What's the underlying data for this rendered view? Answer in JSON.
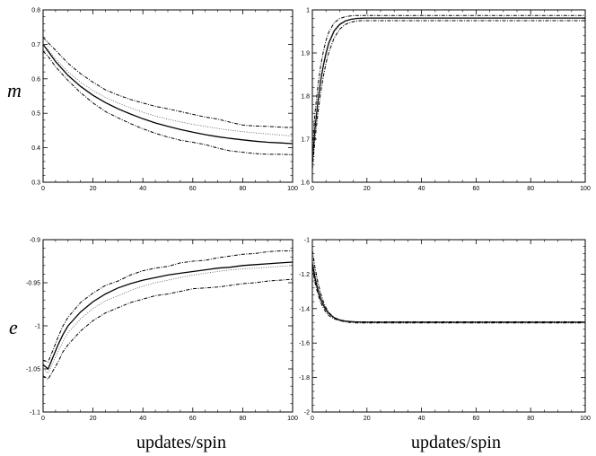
{
  "row_labels": [
    "m",
    "e"
  ],
  "column_labels": [
    "updates/spin",
    "updates/spin"
  ],
  "chart_data": [
    {
      "type": "line",
      "row_label": "m",
      "xlim": [
        0,
        100
      ],
      "ylim": [
        0.3,
        0.8
      ],
      "xticks": [
        0,
        20,
        40,
        60,
        80,
        100
      ],
      "yticks": [
        "0.3",
        "0.4",
        "0.5",
        "0.6",
        "0.7",
        "0.8"
      ],
      "grid": false,
      "series": [
        {
          "style": "solid",
          "x": [
            0,
            2,
            5,
            10,
            15,
            20,
            25,
            30,
            35,
            40,
            45,
            50,
            55,
            60,
            65,
            70,
            75,
            80,
            85,
            90,
            95,
            100
          ],
          "y": [
            0.7,
            0.68,
            0.65,
            0.61,
            0.578,
            0.552,
            0.531,
            0.513,
            0.498,
            0.484,
            0.472,
            0.462,
            0.453,
            0.445,
            0.438,
            0.432,
            0.427,
            0.423,
            0.419,
            0.416,
            0.414,
            0.412
          ]
        },
        {
          "style": "dotted",
          "x": [
            0,
            2,
            5,
            10,
            15,
            20,
            25,
            30,
            35,
            40,
            45,
            50,
            55,
            60,
            65,
            70,
            75,
            80,
            85,
            90,
            95,
            100
          ],
          "y": [
            0.7,
            0.685,
            0.658,
            0.62,
            0.59,
            0.566,
            0.546,
            0.53,
            0.516,
            0.503,
            0.492,
            0.483,
            0.475,
            0.468,
            0.462,
            0.456,
            0.451,
            0.447,
            0.443,
            0.44,
            0.437,
            0.434
          ]
        },
        {
          "style": "dashdot",
          "x": [
            0,
            2,
            5,
            10,
            15,
            20,
            25,
            30,
            35,
            40,
            45,
            50,
            55,
            60,
            65,
            70,
            75,
            80,
            85,
            90,
            95,
            100
          ],
          "y": [
            0.72,
            0.705,
            0.683,
            0.645,
            0.615,
            0.59,
            0.568,
            0.553,
            0.54,
            0.53,
            0.52,
            0.513,
            0.505,
            0.497,
            0.489,
            0.483,
            0.474,
            0.466,
            0.463,
            0.462,
            0.46,
            0.458
          ]
        },
        {
          "style": "dashdot",
          "x": [
            0,
            2,
            5,
            10,
            15,
            20,
            25,
            30,
            35,
            40,
            45,
            50,
            55,
            60,
            65,
            70,
            75,
            80,
            85,
            90,
            95,
            100
          ],
          "y": [
            0.68,
            0.665,
            0.635,
            0.595,
            0.56,
            0.53,
            0.505,
            0.487,
            0.47,
            0.455,
            0.442,
            0.431,
            0.422,
            0.416,
            0.409,
            0.399,
            0.391,
            0.387,
            0.383,
            0.381,
            0.381,
            0.38
          ]
        }
      ]
    },
    {
      "type": "line",
      "row_label": "",
      "xlim": [
        0,
        100
      ],
      "ylim": [
        1.6,
        2.0
      ],
      "xticks": [
        0,
        20,
        40,
        60,
        80,
        100
      ],
      "yticks": [
        "1.6",
        "1.7",
        "1.8",
        "1.9",
        "1"
      ],
      "grid": false,
      "series": [
        {
          "style": "solid",
          "x": [
            0,
            1,
            2,
            3,
            4,
            5,
            6,
            8,
            10,
            12,
            14,
            16,
            18,
            20,
            25,
            30,
            40,
            50,
            60,
            70,
            80,
            90,
            100
          ],
          "y": [
            1.65,
            1.726,
            1.786,
            1.833,
            1.87,
            1.899,
            1.922,
            1.951,
            1.966,
            1.974,
            1.978,
            1.98,
            1.9805,
            1.981,
            1.981,
            1.981,
            1.981,
            1.981,
            1.981,
            1.981,
            1.981,
            1.981,
            1.981
          ]
        },
        {
          "style": "dotted",
          "x": [
            0,
            1,
            2,
            3,
            4,
            5,
            6,
            8,
            10,
            12,
            14,
            16,
            18,
            20,
            25,
            30,
            40,
            50,
            60,
            70,
            80,
            90,
            100
          ],
          "y": [
            1.66,
            1.735,
            1.794,
            1.84,
            1.876,
            1.904,
            1.926,
            1.954,
            1.968,
            1.975,
            1.979,
            1.981,
            1.982,
            1.982,
            1.982,
            1.982,
            1.982,
            1.982,
            1.982,
            1.982,
            1.982,
            1.982,
            1.982
          ]
        },
        {
          "style": "dashdot",
          "x": [
            0,
            1,
            2,
            3,
            4,
            5,
            6,
            8,
            10,
            12,
            14,
            16,
            18,
            20,
            25,
            30,
            40,
            50,
            60,
            70,
            80,
            90,
            100
          ],
          "y": [
            1.68,
            1.762,
            1.822,
            1.868,
            1.903,
            1.929,
            1.948,
            1.97,
            1.98,
            1.984,
            1.986,
            1.987,
            1.987,
            1.987,
            1.987,
            1.987,
            1.987,
            1.987,
            1.987,
            1.987,
            1.987,
            1.987,
            1.987
          ]
        },
        {
          "style": "dashdot",
          "x": [
            0,
            1,
            2,
            3,
            4,
            5,
            6,
            8,
            10,
            12,
            14,
            16,
            18,
            20,
            25,
            30,
            40,
            50,
            60,
            70,
            80,
            90,
            100
          ],
          "y": [
            1.63,
            1.7,
            1.758,
            1.806,
            1.845,
            1.876,
            1.901,
            1.935,
            1.955,
            1.966,
            1.971,
            1.974,
            1.975,
            1.975,
            1.975,
            1.975,
            1.975,
            1.975,
            1.975,
            1.975,
            1.975,
            1.975,
            1.975
          ]
        }
      ]
    },
    {
      "type": "line",
      "row_label": "e",
      "xlim": [
        0,
        100
      ],
      "ylim": [
        -1.1,
        -0.9
      ],
      "xticks": [
        0,
        20,
        40,
        60,
        80,
        100
      ],
      "yticks": [
        "-1.1",
        "-1.05",
        "-1",
        "-0.95",
        "-0.9"
      ],
      "grid": false,
      "series": [
        {
          "style": "solid",
          "x": [
            0,
            2,
            4,
            6,
            8,
            10,
            15,
            20,
            25,
            30,
            35,
            40,
            45,
            50,
            55,
            60,
            65,
            70,
            75,
            80,
            85,
            90,
            95,
            100
          ],
          "y": [
            -1.045,
            -1.05,
            -1.036,
            -1.022,
            -1.01,
            -1.0,
            -0.984,
            -0.972,
            -0.963,
            -0.956,
            -0.951,
            -0.947,
            -0.944,
            -0.941,
            -0.939,
            -0.937,
            -0.935,
            -0.933,
            -0.932,
            -0.93,
            -0.929,
            -0.928,
            -0.927,
            -0.926
          ]
        },
        {
          "style": "dotted",
          "x": [
            0,
            2,
            4,
            6,
            8,
            10,
            15,
            20,
            25,
            30,
            35,
            40,
            45,
            50,
            55,
            60,
            65,
            70,
            75,
            80,
            85,
            90,
            95,
            100
          ],
          "y": [
            -1.05,
            -1.055,
            -1.042,
            -1.03,
            -1.018,
            -1.008,
            -0.992,
            -0.98,
            -0.971,
            -0.965,
            -0.959,
            -0.954,
            -0.95,
            -0.947,
            -0.944,
            -0.941,
            -0.939,
            -0.937,
            -0.935,
            -0.934,
            -0.933,
            -0.932,
            -0.931,
            -0.93
          ]
        },
        {
          "style": "dashdot",
          "x": [
            0,
            2,
            4,
            6,
            8,
            10,
            15,
            20,
            25,
            30,
            35,
            40,
            45,
            50,
            55,
            60,
            65,
            70,
            75,
            80,
            85,
            90,
            95,
            100
          ],
          "y": [
            -1.04,
            -1.042,
            -1.028,
            -1.013,
            -1.0,
            -0.99,
            -0.973,
            -0.962,
            -0.953,
            -0.948,
            -0.941,
            -0.936,
            -0.933,
            -0.931,
            -0.927,
            -0.925,
            -0.924,
            -0.921,
            -0.919,
            -0.917,
            -0.916,
            -0.914,
            -0.913,
            -0.913
          ]
        },
        {
          "style": "dashdot",
          "x": [
            0,
            2,
            4,
            6,
            8,
            10,
            15,
            20,
            25,
            30,
            35,
            40,
            45,
            50,
            55,
            60,
            65,
            70,
            75,
            80,
            85,
            90,
            95,
            100
          ],
          "y": [
            -1.058,
            -1.062,
            -1.052,
            -1.042,
            -1.03,
            -1.022,
            -1.006,
            -0.994,
            -0.985,
            -0.979,
            -0.973,
            -0.969,
            -0.965,
            -0.963,
            -0.96,
            -0.957,
            -0.956,
            -0.955,
            -0.953,
            -0.951,
            -0.95,
            -0.948,
            -0.947,
            -0.946
          ]
        }
      ]
    },
    {
      "type": "line",
      "row_label": "",
      "xlim": [
        0,
        100
      ],
      "ylim": [
        -2.0,
        -0.9
      ],
      "xticks": [
        0,
        20,
        40,
        60,
        80,
        100
      ],
      "yticks": [
        "-2",
        "-1.8",
        "-1.6",
        "-1.4",
        "-1.2",
        "-1"
      ],
      "grid": false,
      "series": [
        {
          "style": "solid",
          "x": [
            0,
            1,
            2,
            3,
            4,
            5,
            6,
            8,
            10,
            12,
            14,
            16,
            18,
            20,
            25,
            30,
            40,
            50,
            60,
            70,
            80,
            90,
            100
          ],
          "y": [
            -1.05,
            -1.145,
            -1.22,
            -1.275,
            -1.317,
            -1.348,
            -1.371,
            -1.398,
            -1.412,
            -1.419,
            -1.423,
            -1.425,
            -1.426,
            -1.427,
            -1.427,
            -1.427,
            -1.427,
            -1.427,
            -1.427,
            -1.427,
            -1.427,
            -1.427,
            -1.427
          ]
        },
        {
          "style": "dotted",
          "x": [
            0,
            1,
            2,
            3,
            4,
            5,
            6,
            8,
            10,
            12,
            14,
            16,
            18,
            20,
            25,
            30,
            40,
            50,
            60,
            70,
            80,
            90,
            100
          ],
          "y": [
            -1.0,
            -1.11,
            -1.196,
            -1.26,
            -1.308,
            -1.342,
            -1.367,
            -1.397,
            -1.412,
            -1.42,
            -1.424,
            -1.426,
            -1.427,
            -1.428,
            -1.428,
            -1.428,
            -1.428,
            -1.428,
            -1.428,
            -1.428,
            -1.428,
            -1.428,
            -1.428
          ]
        },
        {
          "style": "dashdot",
          "x": [
            0,
            1,
            2,
            3,
            4,
            5,
            6,
            8,
            10,
            12,
            14,
            16,
            18,
            20,
            25,
            30,
            40,
            50,
            60,
            70,
            80,
            90,
            100
          ],
          "y": [
            -1.08,
            -1.175,
            -1.246,
            -1.298,
            -1.336,
            -1.364,
            -1.384,
            -1.406,
            -1.416,
            -1.421,
            -1.423,
            -1.424,
            -1.424,
            -1.424,
            -1.424,
            -1.424,
            -1.424,
            -1.424,
            -1.424,
            -1.424,
            -1.424,
            -1.424,
            -1.424
          ]
        },
        {
          "style": "dashdot",
          "x": [
            0,
            1,
            2,
            3,
            4,
            5,
            6,
            8,
            10,
            12,
            14,
            16,
            18,
            20,
            25,
            30,
            40,
            50,
            60,
            70,
            80,
            90,
            100
          ],
          "y": [
            -0.97,
            -1.08,
            -1.17,
            -1.24,
            -1.294,
            -1.334,
            -1.364,
            -1.398,
            -1.416,
            -1.425,
            -1.429,
            -1.431,
            -1.431,
            -1.431,
            -1.431,
            -1.431,
            -1.431,
            -1.431,
            -1.431,
            -1.431,
            -1.431,
            -1.431,
            -1.431
          ]
        }
      ]
    }
  ]
}
